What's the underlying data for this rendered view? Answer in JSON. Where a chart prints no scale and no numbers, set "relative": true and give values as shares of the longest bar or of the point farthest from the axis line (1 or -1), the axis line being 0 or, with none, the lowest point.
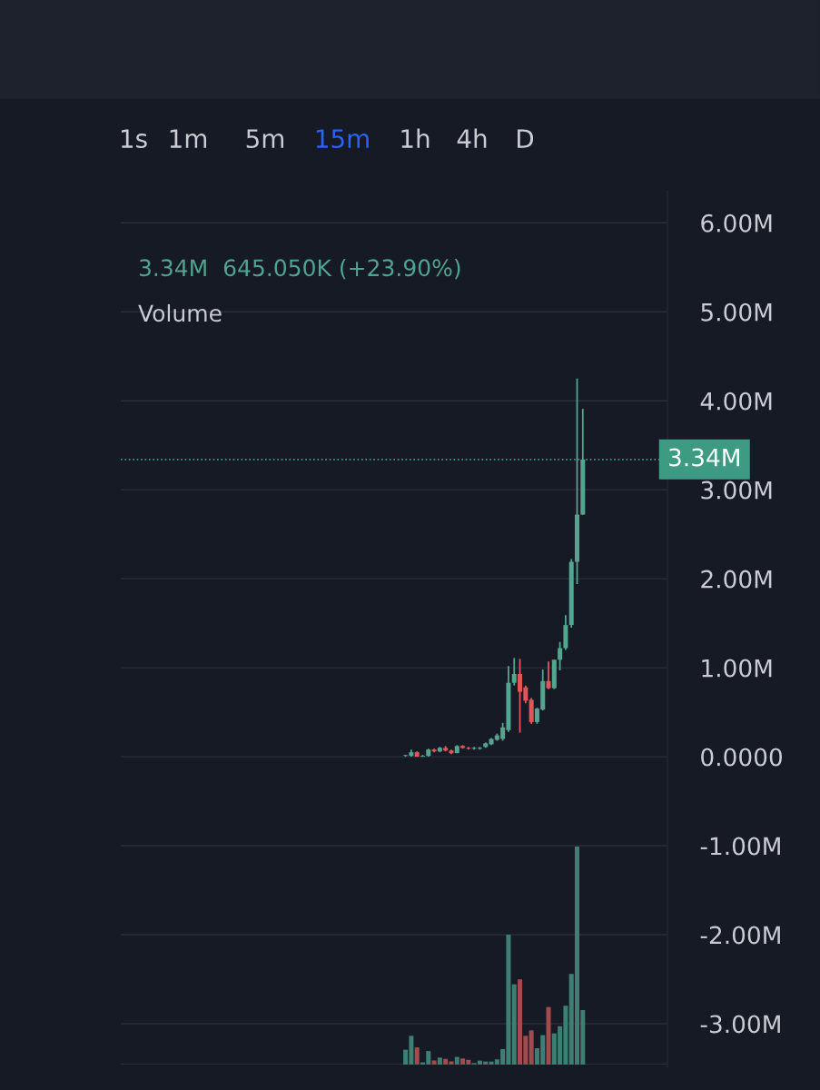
{
  "chart_data": [
    {
      "type": "candlestick",
      "categories": [
        null,
        null,
        null,
        null,
        null,
        null,
        null,
        null,
        null,
        null,
        null,
        null,
        null,
        null,
        null,
        null,
        null,
        null,
        null,
        null,
        null,
        null,
        null,
        null,
        null,
        null,
        null,
        null,
        null,
        null,
        null,
        null
      ],
      "ohlc": [
        [
          0.01,
          0.02,
          0.0,
          0.01
        ],
        [
          0.01,
          0.08,
          0.0,
          0.05
        ],
        [
          0.05,
          0.06,
          0.0,
          0.0
        ],
        [
          0.0,
          0.02,
          0.0,
          0.01
        ],
        [
          0.01,
          0.09,
          0.0,
          0.08
        ],
        [
          0.08,
          0.09,
          0.05,
          0.06
        ],
        [
          0.06,
          0.11,
          0.05,
          0.1
        ],
        [
          0.1,
          0.12,
          0.06,
          0.07
        ],
        [
          0.07,
          0.08,
          0.03,
          0.04
        ],
        [
          0.04,
          0.13,
          0.04,
          0.12
        ],
        [
          0.12,
          0.13,
          0.09,
          0.1
        ],
        [
          0.1,
          0.11,
          0.08,
          0.09
        ],
        [
          0.09,
          0.11,
          0.08,
          0.1
        ],
        [
          0.09,
          0.11,
          0.08,
          0.1
        ],
        [
          0.11,
          0.16,
          0.1,
          0.15
        ],
        [
          0.14,
          0.21,
          0.13,
          0.2
        ],
        [
          0.19,
          0.26,
          0.18,
          0.24
        ],
        [
          0.2,
          0.38,
          0.18,
          0.33
        ],
        [
          0.3,
          1.02,
          0.28,
          0.83
        ],
        [
          0.83,
          1.11,
          0.8,
          0.93
        ],
        [
          0.93,
          1.1,
          0.27,
          0.73
        ],
        [
          0.78,
          0.8,
          0.6,
          0.63
        ],
        [
          0.64,
          0.66,
          0.37,
          0.39
        ],
        [
          0.39,
          0.55,
          0.37,
          0.54
        ],
        [
          0.53,
          0.98,
          0.52,
          0.85
        ],
        [
          0.85,
          1.07,
          0.76,
          0.77
        ],
        [
          0.77,
          1.09,
          0.76,
          1.09
        ],
        [
          1.09,
          1.29,
          0.97,
          1.22
        ],
        [
          1.22,
          1.59,
          1.2,
          1.48
        ],
        [
          1.48,
          2.22,
          1.45,
          2.19
        ],
        [
          2.19,
          4.25,
          1.94,
          2.72
        ],
        [
          2.72,
          3.91,
          2.72,
          3.34
        ]
      ],
      "colors": [
        "#52a58f",
        "#52a58f",
        "#e0575a",
        "#52a58f",
        "#52a58f",
        "#e0575a",
        "#52a58f",
        "#e0575a",
        "#e0575a",
        "#52a58f",
        "#e0575a",
        "#e0575a",
        "#52a58f",
        "#52a58f",
        "#52a58f",
        "#52a58f",
        "#52a58f",
        "#52a58f",
        "#52a58f",
        "#52a58f",
        "#e0575a",
        "#e0575a",
        "#e0575a",
        "#52a58f",
        "#52a58f",
        "#e0575a",
        "#52a58f",
        "#52a58f",
        "#52a58f",
        "#52a58f",
        "#52a58f",
        "#52a58f"
      ],
      "ylim": [
        -3.49,
        6.36
      ],
      "yticks": [
        {
          "value": 6,
          "label": "6.00M"
        },
        {
          "value": 5,
          "label": "5.00M"
        },
        {
          "value": 4,
          "label": "4.00M"
        },
        {
          "value": 3,
          "label": "3.00M"
        },
        {
          "value": 2,
          "label": "2.00M"
        },
        {
          "value": 1,
          "label": "1.00M"
        },
        {
          "value": 0,
          "label": "0.0000"
        },
        {
          "value": -1,
          "label": "-1.00M"
        },
        {
          "value": -2,
          "label": "-2.00M"
        },
        {
          "value": -3,
          "label": "-3.00M"
        }
      ],
      "ref_lines": [
        {
          "axis": "y",
          "value": 3.34,
          "label": "3.34M",
          "color": "#3d9b84",
          "line_style": "dotted"
        }
      ],
      "grid": "y",
      "tick_labels": "y",
      "annotations": [
        "1s",
        "1m",
        "5m",
        "15m",
        "1h",
        "4h",
        "D",
        "3.34M  645.050K (+23.90%)",
        "Volume"
      ]
    },
    {
      "type": "bar",
      "relative": true,
      "categories": [
        null,
        null,
        null,
        null,
        null,
        null,
        null,
        null,
        null,
        null,
        null,
        null,
        null,
        null,
        null,
        null,
        null,
        null,
        null,
        null,
        null,
        null,
        null,
        null,
        null,
        null,
        null,
        null,
        null,
        null,
        null,
        null
      ],
      "values": [
        0.068,
        0.132,
        0.079,
        0.01,
        0.062,
        0.019,
        0.032,
        0.026,
        0.015,
        0.035,
        0.028,
        0.022,
        0.007,
        0.018,
        0.014,
        0.014,
        0.024,
        0.071,
        0.596,
        0.368,
        0.391,
        0.132,
        0.157,
        0.075,
        0.135,
        0.264,
        0.143,
        0.176,
        0.27,
        0.416,
        1,
        0.25
      ],
      "colors": [
        "#3d7f72",
        "#3d7f72",
        "#a24a4d",
        "#3d7f72",
        "#3d7f72",
        "#a24a4d",
        "#3d7f72",
        "#a24a4d",
        "#a24a4d",
        "#3d7f72",
        "#a24a4d",
        "#a24a4d",
        "#3d7f72",
        "#3d7f72",
        "#3d7f72",
        "#3d7f72",
        "#3d7f72",
        "#3d7f72",
        "#3d7f72",
        "#3d7f72",
        "#a24a4d",
        "#a24a4d",
        "#a24a4d",
        "#3d7f72",
        "#3d7f72",
        "#a24a4d",
        "#3d7f72",
        "#3d7f72",
        "#3d7f72",
        "#3d7f72",
        "#3d7f72",
        "#3d7f72"
      ],
      "tick_labels": false
    }
  ]
}
